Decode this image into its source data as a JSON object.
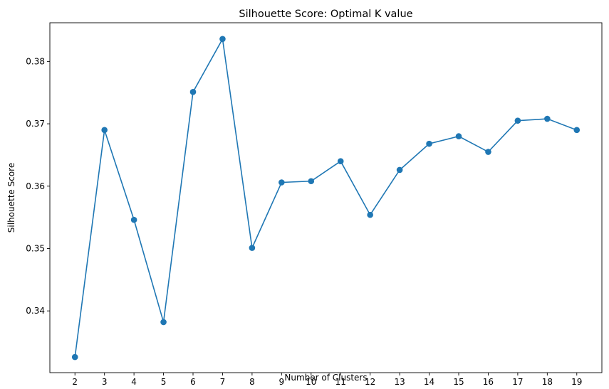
{
  "chart_data": {
    "type": "line",
    "title": "Silhouette Score: Optimal K value",
    "xlabel": "Number of Clusters",
    "ylabel": "Silhouette Score",
    "x": [
      2,
      3,
      4,
      5,
      6,
      7,
      8,
      9,
      10,
      11,
      12,
      13,
      14,
      15,
      16,
      17,
      18,
      19
    ],
    "series": [
      {
        "values": [
          0.3326,
          0.369,
          0.3546,
          0.3382,
          0.3751,
          0.3836,
          0.3501,
          0.3606,
          0.3608,
          0.364,
          0.3554,
          0.3626,
          0.3668,
          0.368,
          0.3655,
          0.3705,
          0.3708,
          0.369
        ],
        "color": "#1f77b4",
        "marker": "circle"
      }
    ],
    "xticks": [
      "2",
      "3",
      "4",
      "5",
      "6",
      "7",
      "8",
      "9",
      "10",
      "11",
      "12",
      "13",
      "14",
      "15",
      "16",
      "17",
      "18",
      "19"
    ],
    "yticks": [
      "0.34",
      "0.35",
      "0.36",
      "0.37",
      "0.38"
    ],
    "ytick_values": [
      0.34,
      0.35,
      0.36,
      0.37,
      0.38
    ],
    "xlim": [
      1.15,
      19.85
    ],
    "ylim": [
      0.3301,
      0.3862
    ],
    "grid": false,
    "legend": "none"
  }
}
